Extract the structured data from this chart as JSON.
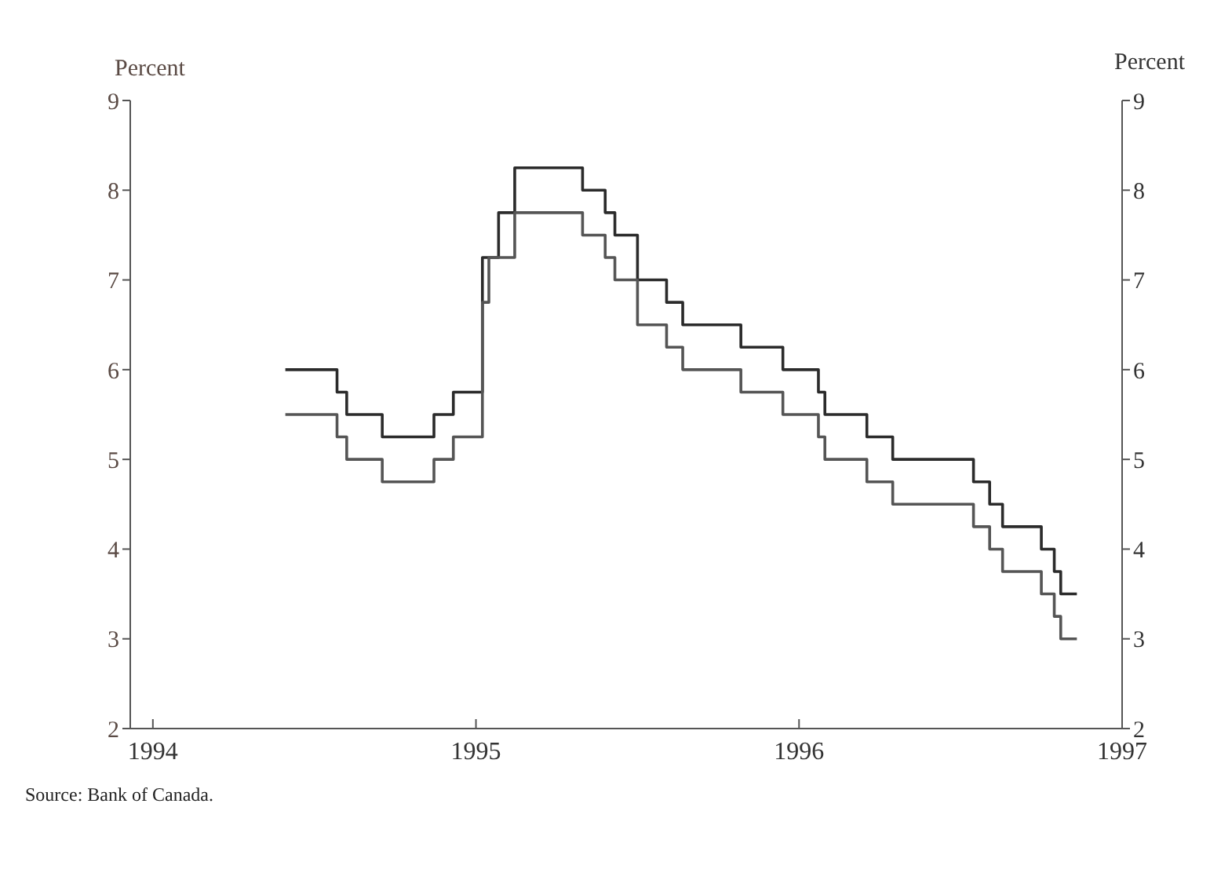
{
  "chart_data": {
    "type": "step",
    "ylabel": "Percent",
    "y2label": "Percent",
    "xlim": [
      1993.93,
      1997
    ],
    "xticks": [
      1994,
      1995,
      1996,
      1997
    ],
    "ylim": [
      2,
      9
    ],
    "yticks": [
      2,
      3,
      4,
      5,
      6,
      7,
      8,
      9
    ],
    "y2lim": [
      2,
      9
    ],
    "y2ticks": [
      2,
      3,
      4,
      5,
      6,
      7,
      8,
      9
    ],
    "series": [
      {
        "color": "#2b2b2b",
        "x": [
          1994.41,
          1994.57,
          1994.6,
          1994.71,
          1994.87,
          1994.93,
          1995.02,
          1995.07,
          1995.12,
          1995.33,
          1995.4,
          1995.43,
          1995.5,
          1995.59,
          1995.64,
          1995.82,
          1995.95,
          1996.06,
          1996.08,
          1996.21,
          1996.29,
          1996.54,
          1996.59,
          1996.63,
          1996.75,
          1996.79,
          1996.81,
          1996.86
        ],
        "values": [
          6.0,
          5.75,
          5.5,
          5.25,
          5.5,
          5.75,
          7.25,
          7.75,
          8.25,
          8.0,
          7.75,
          7.5,
          7.0,
          6.75,
          6.5,
          6.25,
          6.0,
          5.75,
          5.5,
          5.25,
          5.0,
          4.75,
          4.5,
          4.25,
          4.0,
          3.75,
          3.5,
          3.5
        ]
      },
      {
        "color": "#555555",
        "x": [
          1994.41,
          1994.57,
          1994.6,
          1994.71,
          1994.87,
          1994.93,
          1995.02,
          1995.04,
          1995.12,
          1995.33,
          1995.4,
          1995.43,
          1995.5,
          1995.59,
          1995.64,
          1995.82,
          1995.95,
          1996.06,
          1996.08,
          1996.21,
          1996.29,
          1996.54,
          1996.59,
          1996.63,
          1996.75,
          1996.79,
          1996.81,
          1996.86
        ],
        "values": [
          5.5,
          5.25,
          5.0,
          4.75,
          5.0,
          5.25,
          6.75,
          7.25,
          7.75,
          7.5,
          7.25,
          7.0,
          6.5,
          6.25,
          6.0,
          5.75,
          5.5,
          5.25,
          5.0,
          4.75,
          4.5,
          4.25,
          4.0,
          3.75,
          3.5,
          3.25,
          3.0,
          3.0
        ]
      }
    ],
    "annotations": [
      "Source: Bank of Canada."
    ],
    "marker": "none",
    "line_style": "solid"
  }
}
